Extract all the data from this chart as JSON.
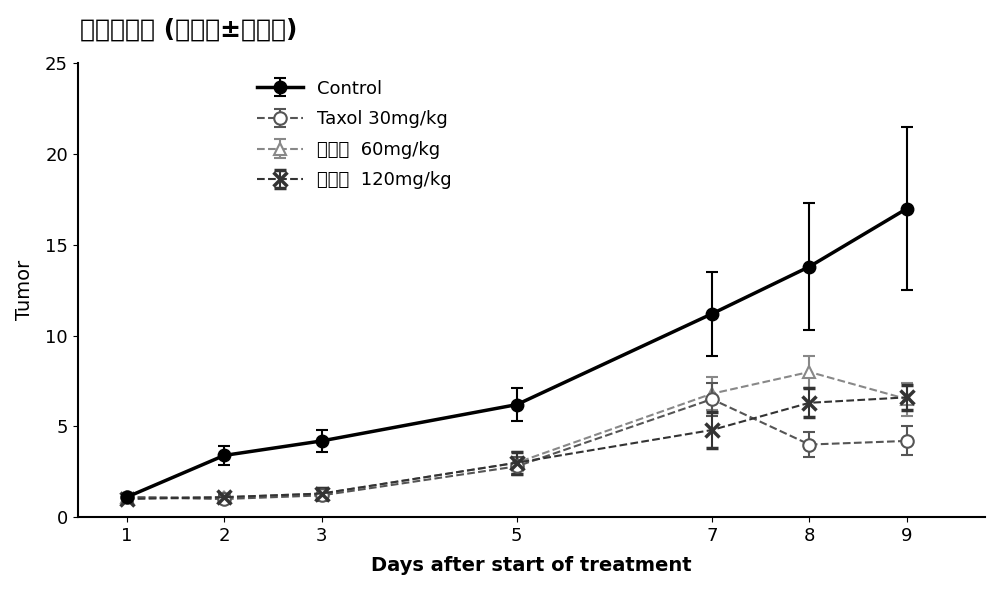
{
  "title": "相对瘤体积 (平均值±标准差)",
  "xlabel": "Days after start of treatment",
  "ylabel": "Tumor",
  "x": [
    1,
    2,
    3,
    5,
    7,
    8,
    9
  ],
  "control_y": [
    1.1,
    3.4,
    4.2,
    6.2,
    11.2,
    13.8,
    17.0
  ],
  "control_err": [
    0.1,
    0.5,
    0.6,
    0.9,
    2.3,
    3.5,
    4.5
  ],
  "taxol_y": [
    1.1,
    1.0,
    1.2,
    2.8,
    6.5,
    4.0,
    4.2
  ],
  "taxol_err": [
    0.1,
    0.15,
    0.3,
    0.5,
    0.9,
    0.7,
    0.8
  ],
  "comp60_y": [
    1.1,
    1.1,
    1.3,
    3.0,
    6.8,
    8.0,
    6.5
  ],
  "comp60_err": [
    0.1,
    0.15,
    0.3,
    0.6,
    0.9,
    0.9,
    0.9
  ],
  "comp120_y": [
    1.0,
    1.1,
    1.3,
    3.0,
    4.8,
    6.3,
    6.6
  ],
  "comp120_err": [
    0.1,
    0.15,
    0.3,
    0.6,
    1.0,
    0.8,
    0.7
  ],
  "ylim": [
    0,
    25
  ],
  "yticks": [
    0,
    5,
    10,
    15,
    20,
    25
  ],
  "xticks": [
    1,
    2,
    3,
    5,
    7,
    8,
    9
  ],
  "legend_labels": [
    "Control",
    "Taxol 30mg/kg",
    "化合物  60mg/kg",
    "化合物  120mg/kg"
  ],
  "control_color": "#000000",
  "taxol_color": "#555555",
  "comp60_color": "#888888",
  "comp120_color": "#333333",
  "background_color": "#ffffff",
  "title_fontsize": 18,
  "label_fontsize": 14,
  "tick_fontsize": 13,
  "legend_fontsize": 13
}
